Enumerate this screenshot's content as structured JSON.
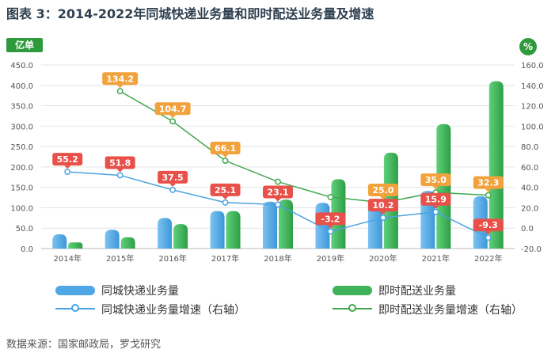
{
  "title": "图表 3：2014-2022年同城快递业务量和即时配送业务量及增速",
  "source": "数据来源：国家邮政局，罗戈研究",
  "colors": {
    "blue": "#4fa7e6",
    "green": "#3fb35a",
    "blue_line": "#4aa3e0",
    "green_line": "#41a84e",
    "blue_label": "#e8514a",
    "orange_label": "#f2a23c",
    "axis_badge": "#2f9a3c"
  },
  "chart_data": {
    "type": "bar",
    "categories": [
      "2014年",
      "2015年",
      "2016年",
      "2017年",
      "2018年",
      "2019年",
      "2020年",
      "2021年",
      "2022年"
    ],
    "left_axis": {
      "unit": "亿单",
      "ylim": [
        0,
        450
      ],
      "ticks": [
        "0.0",
        "50.0",
        "100.0",
        "150.0",
        "200.0",
        "250.0",
        "300.0",
        "350.0",
        "400.0",
        "450.0"
      ]
    },
    "right_axis": {
      "unit": "%",
      "ylim": [
        -20,
        160
      ],
      "ticks": [
        "-20.0",
        "0.0",
        "20.0",
        "40.0",
        "60.0",
        "80.0",
        "100.0",
        "120.0",
        "140.0",
        "160.0"
      ]
    },
    "series": [
      {
        "name": "同城快递业务量",
        "kind": "bar",
        "axis": "left",
        "values": [
          35,
          46,
          75,
          92,
          115,
          112,
          122,
          141,
          128
        ]
      },
      {
        "name": "即时配送业务量",
        "kind": "bar",
        "axis": "left",
        "values": [
          15,
          28,
          60,
          92,
          120,
          170,
          235,
          305,
          410
        ]
      },
      {
        "name": "同城快递业务量增速（右轴）",
        "kind": "line",
        "axis": "right",
        "values": [
          55.2,
          51.8,
          37.5,
          25.1,
          23.1,
          -3.2,
          10.2,
          15.9,
          -9.3
        ],
        "labels": [
          "55.2",
          "51.8",
          "37.5",
          "25.1",
          "23.1",
          "-3.2",
          "10.2",
          "15.9",
          "-9.3"
        ]
      },
      {
        "name": "即时配送业务量增速（右轴）",
        "kind": "line",
        "axis": "right",
        "values": [
          null,
          134.2,
          104.7,
          66.1,
          45.5,
          30.5,
          25.0,
          35.0,
          32.3
        ],
        "labels": [
          null,
          "134.2",
          "104.7",
          "66.1",
          "",
          "",
          "25.0",
          "35.0",
          "32.3"
        ]
      }
    ],
    "grid": true,
    "legend": "bottom"
  }
}
